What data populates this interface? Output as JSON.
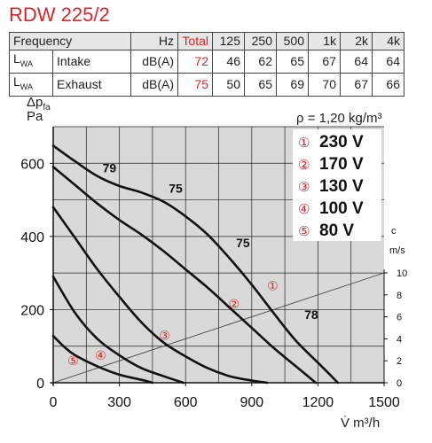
{
  "title": "RDW 225/2",
  "sound_table": {
    "headers": [
      "Frequency",
      "Hz",
      "Total",
      "125",
      "250",
      "500",
      "1k",
      "2k",
      "4k"
    ],
    "rows": [
      {
        "sym": "L",
        "sub": "WA",
        "label": "Intake",
        "unit": "dB(A)",
        "total": "72",
        "values": [
          "46",
          "62",
          "65",
          "67",
          "64",
          "64"
        ]
      },
      {
        "sym": "L",
        "sub": "WA",
        "label": "Exhaust",
        "unit": "dB(A)",
        "total": "75",
        "values": [
          "50",
          "65",
          "69",
          "70",
          "67",
          "66"
        ]
      }
    ]
  },
  "colors": {
    "accent": "#d9252a",
    "curve": "#111111",
    "grid": "#222222",
    "background": "#d9d9d9"
  },
  "chart_data": {
    "type": "line",
    "xlabel": "V̇ m³/h",
    "ylabel_line1": "Δp",
    "ylabel_sub": "fa",
    "ylabel_line2": "Pa",
    "xlim": [
      0,
      1500
    ],
    "ylim": [
      0,
      700
    ],
    "x_ticks": [
      "0",
      "300",
      "600",
      "900",
      "1200",
      "1500"
    ],
    "y_ticks": [
      "0",
      "200",
      "400",
      "600"
    ],
    "density_note": "ρ = 1,20 kg/m³",
    "right_axis": {
      "unit_line1": "c",
      "unit_line2": "m/s",
      "ticks": [
        "0",
        "2",
        "4",
        "6",
        "8",
        "10"
      ],
      "max": 10
    },
    "grid": true,
    "series": [
      {
        "marker": "①",
        "name": "230 V",
        "points": [
          [
            0,
            648
          ],
          [
            100,
            605
          ],
          [
            200,
            565
          ],
          [
            300,
            538
          ],
          [
            400,
            520
          ],
          [
            500,
            495
          ],
          [
            600,
            455
          ],
          [
            700,
            405
          ],
          [
            800,
            340
          ],
          [
            900,
            268
          ],
          [
            1000,
            190
          ],
          [
            1100,
            115
          ],
          [
            1200,
            55
          ],
          [
            1250,
            25
          ],
          [
            1290,
            0
          ]
        ]
      },
      {
        "marker": "②",
        "name": "170 V",
        "points": [
          [
            0,
            590
          ],
          [
            100,
            540
          ],
          [
            200,
            490
          ],
          [
            300,
            445
          ],
          [
            400,
            405
          ],
          [
            500,
            360
          ],
          [
            600,
            310
          ],
          [
            700,
            260
          ],
          [
            800,
            205
          ],
          [
            900,
            150
          ],
          [
            1000,
            95
          ],
          [
            1100,
            45
          ],
          [
            1160,
            15
          ],
          [
            1190,
            0
          ]
        ]
      },
      {
        "marker": "③",
        "name": "130 V",
        "points": [
          [
            0,
            480
          ],
          [
            100,
            395
          ],
          [
            200,
            310
          ],
          [
            300,
            235
          ],
          [
            400,
            165
          ],
          [
            500,
            110
          ],
          [
            600,
            72
          ],
          [
            700,
            40
          ],
          [
            800,
            18
          ],
          [
            900,
            6
          ],
          [
            970,
            0
          ]
        ]
      },
      {
        "marker": "④",
        "name": "100 V",
        "points": [
          [
            0,
            290
          ],
          [
            100,
            190
          ],
          [
            200,
            120
          ],
          [
            300,
            75
          ],
          [
            400,
            40
          ],
          [
            500,
            18
          ],
          [
            590,
            0
          ]
        ]
      },
      {
        "marker": "⑤",
        "name": "80 V",
        "points": [
          [
            0,
            128
          ],
          [
            50,
            98
          ],
          [
            100,
            75
          ],
          [
            200,
            45
          ],
          [
            300,
            22
          ],
          [
            400,
            8
          ],
          [
            450,
            0
          ]
        ]
      }
    ],
    "velocity_line": {
      "points": [
        [
          0,
          0
        ],
        [
          1500,
          10
        ]
      ]
    },
    "curve_labels": [
      {
        "text": "79",
        "x": 255,
        "y": 575
      },
      {
        "text": "75",
        "x": 555,
        "y": 520
      },
      {
        "text": "75",
        "x": 860,
        "y": 370
      },
      {
        "text": "78",
        "x": 1170,
        "y": 175
      }
    ],
    "markers": [
      {
        "text": "①",
        "x": 995,
        "y": 265
      },
      {
        "text": "②",
        "x": 820,
        "y": 215
      },
      {
        "text": "③",
        "x": 505,
        "y": 130
      },
      {
        "text": "④",
        "x": 215,
        "y": 75
      },
      {
        "text": "⑤",
        "x": 90,
        "y": 60
      }
    ]
  }
}
